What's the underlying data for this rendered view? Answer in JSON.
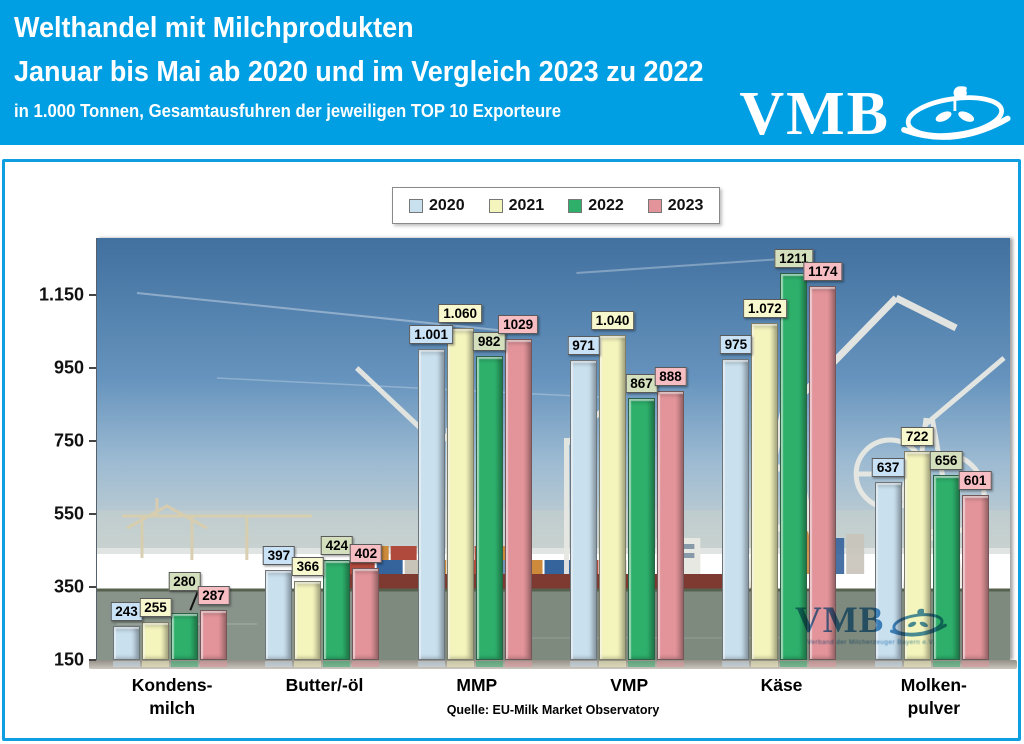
{
  "header": {
    "title_line1": "Welthandel mit Milchprodukten",
    "title_line2": "Januar bis Mai ab 2020 und im Vergleich 2023 zu 2022",
    "subtitle": "in 1.000 Tonnen, Gesamtausfuhren der jeweiligen TOP 10 Exporteure",
    "bg_color": "#009ee3",
    "logo_text": "VMB"
  },
  "chart_data": {
    "type": "bar",
    "title": "Welthandel mit Milchprodukten",
    "subtitle": "Januar bis Mai ab 2020 und im Vergleich 2023 zu 2022",
    "unit_note": "in 1.000 Tonnen",
    "categories": [
      "Kondens-\nmilch",
      "Butter/-öl",
      "MMP",
      "VMP",
      "Käse",
      "Molken-\npulver"
    ],
    "series": [
      {
        "name": "2020",
        "values": [
          243,
          397,
          1001,
          971,
          975,
          637
        ],
        "labels": [
          "243",
          "397",
          "1.001",
          "971",
          "975",
          "637"
        ],
        "bar_color": "#c9e0ef",
        "label_bg": "#c9e2f6",
        "pattern": "lattice"
      },
      {
        "name": "2021",
        "values": [
          255,
          366,
          1060,
          1040,
          1072,
          722
        ],
        "labels": [
          "255",
          "366",
          "1.060",
          "1.040",
          "1.072",
          "722"
        ],
        "bar_color": "#f4f4bd",
        "label_bg": "#f8f8cf",
        "pattern": "smooth"
      },
      {
        "name": "2022",
        "values": [
          280,
          424,
          982,
          867,
          1211,
          656
        ],
        "labels": [
          "280",
          "424",
          "982",
          "867",
          "1211",
          "656"
        ],
        "bar_color": "#2eb06b",
        "label_bg": "#d4dfbd",
        "pattern": "lattice"
      },
      {
        "name": "2023",
        "values": [
          287,
          402,
          1029,
          888,
          1174,
          601
        ],
        "labels": [
          "287",
          "402",
          "1029",
          "888",
          "1174",
          "601"
        ],
        "bar_color": "#e2949a",
        "label_bg": "#f6bdc2",
        "pattern": "lattice"
      }
    ],
    "yticks": {
      "values": [
        150,
        350,
        550,
        750,
        950,
        1150
      ],
      "labels": [
        "150",
        "350",
        "550",
        "750",
        "950",
        "1.150"
      ]
    },
    "ylim": [
      150,
      1306
    ],
    "grid": false,
    "legend_position": "top-center",
    "source": "Quelle: EU-Milk Market Observatory"
  },
  "watermark": {
    "text": "VMB",
    "small_text": "Verband der Milcherzeuger Bayern e.V.",
    "color": "#1e74b4"
  }
}
